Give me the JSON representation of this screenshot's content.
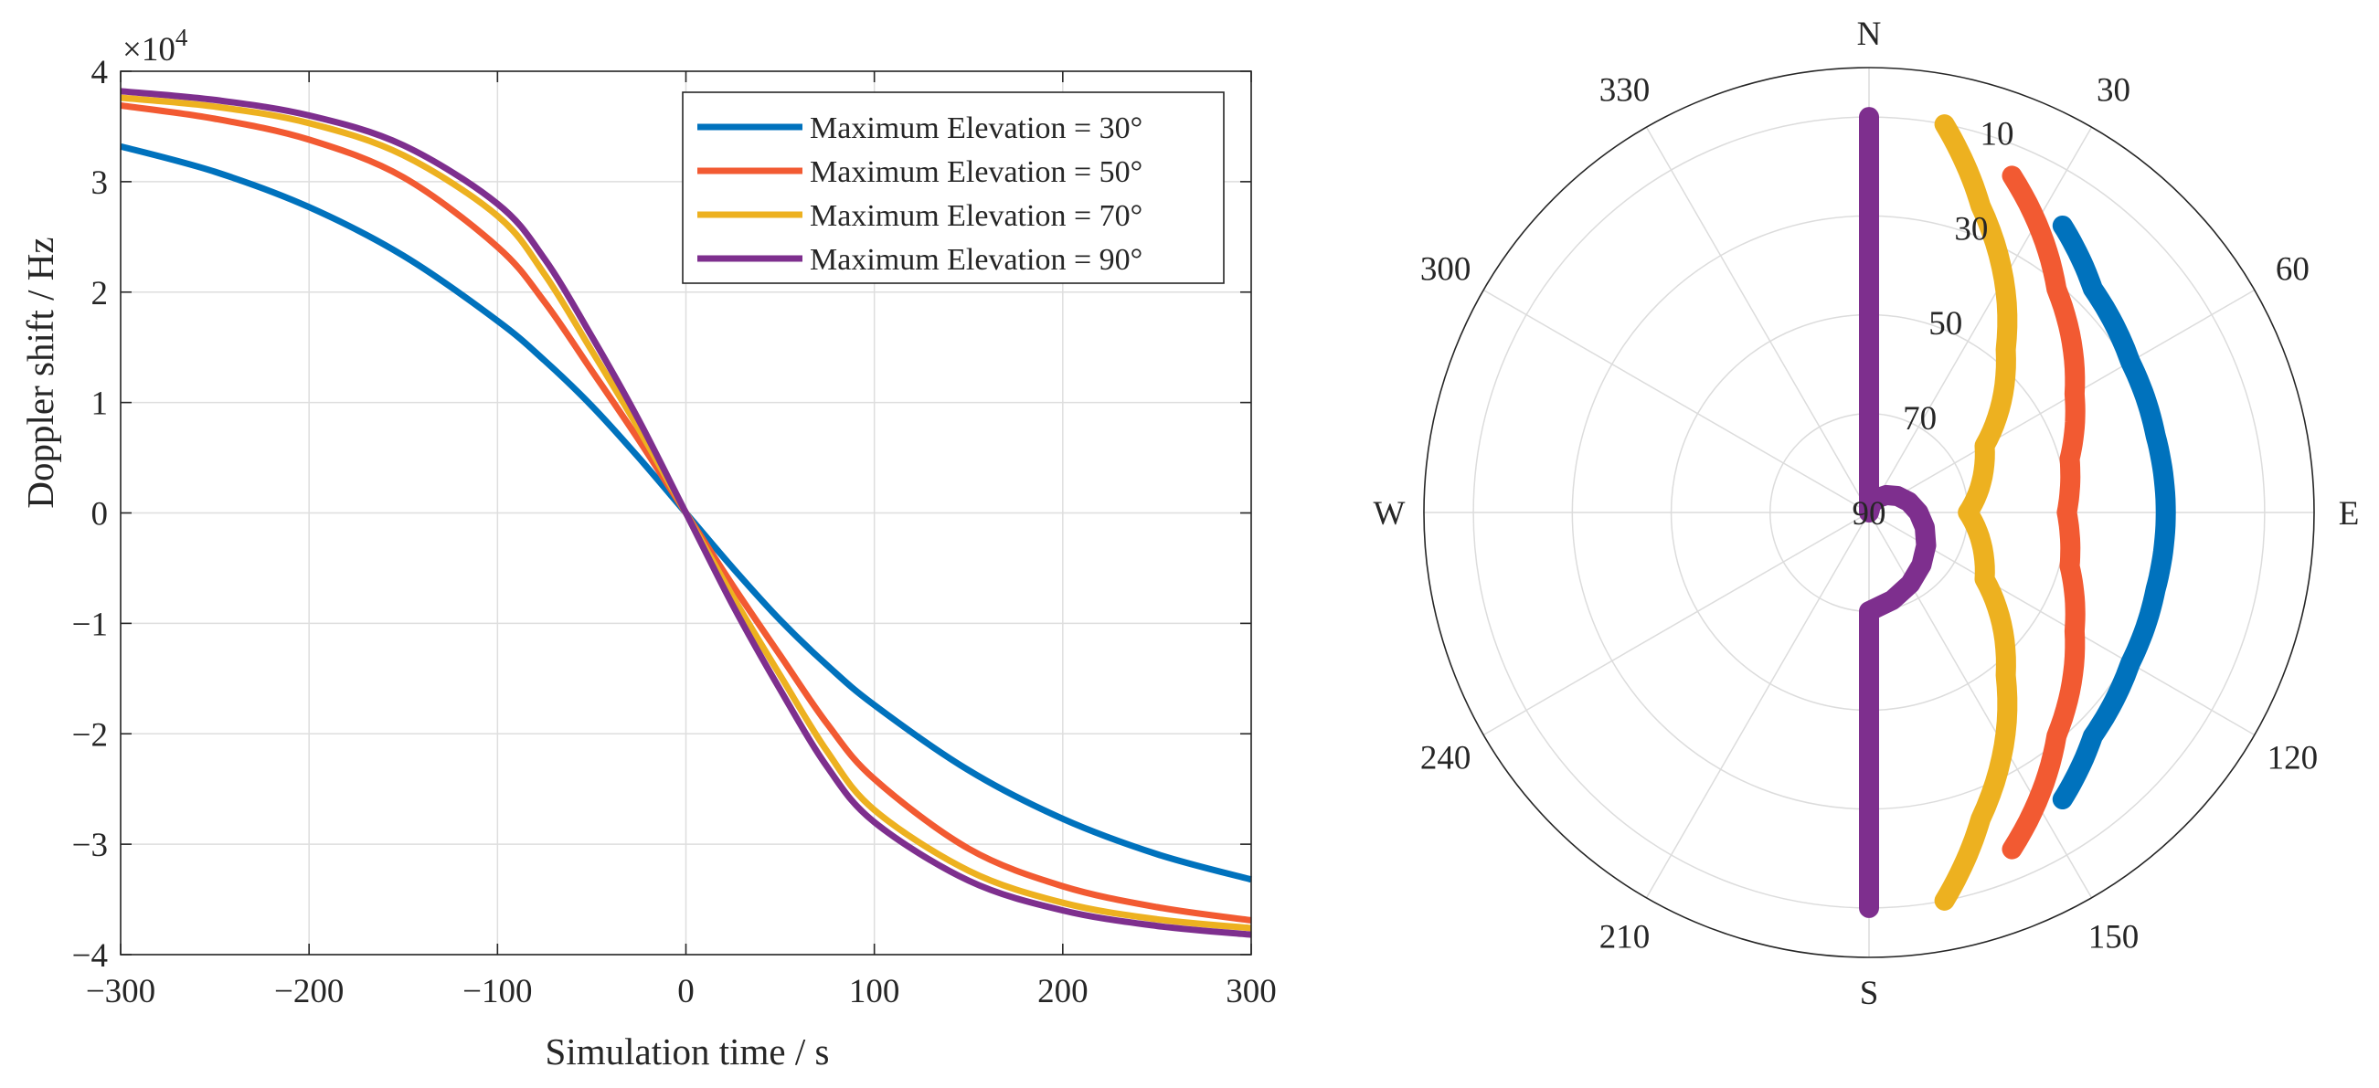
{
  "chart_data": [
    {
      "type": "line",
      "xlabel": "Simulation time / s",
      "ylabel": "Doppler shift / Hz",
      "exponent_label": "×10",
      "exponent_power": "4",
      "xlim": [
        -300,
        300
      ],
      "ylim": [
        -4,
        4
      ],
      "xticks": [
        -300,
        -200,
        -100,
        0,
        100,
        200,
        300
      ],
      "xtick_labels": [
        "−300",
        "−200",
        "−100",
        "0",
        "100",
        "200",
        "300"
      ],
      "yticks": [
        -4,
        -3,
        -2,
        -1,
        0,
        1,
        2,
        3,
        4
      ],
      "ytick_labels": [
        "−4",
        "−3",
        "−2",
        "−1",
        "0",
        "1",
        "2",
        "3",
        "4"
      ],
      "grid": true,
      "legend_position": "top-right",
      "x": [
        -300,
        -250,
        -200,
        -150,
        -100,
        -75,
        -50,
        -25,
        0,
        25,
        50,
        75,
        100,
        150,
        200,
        250,
        300
      ],
      "series": [
        {
          "name": "Maximum Elevation = 30°",
          "color": "#0072BD",
          "values": [
            3.32,
            3.09,
            2.77,
            2.33,
            1.74,
            1.38,
            0.97,
            0.5,
            0,
            -0.5,
            -0.97,
            -1.38,
            -1.74,
            -2.33,
            -2.77,
            -3.09,
            -3.32
          ]
        },
        {
          "name": "Maximum Elevation = 50°",
          "color": "#F25A32",
          "values": [
            3.69,
            3.57,
            3.38,
            3.04,
            2.41,
            1.91,
            1.29,
            0.66,
            0,
            -0.66,
            -1.29,
            -1.91,
            -2.41,
            -3.04,
            -3.38,
            -3.57,
            -3.69
          ]
        },
        {
          "name": "Maximum Elevation = 70°",
          "color": "#EDB120",
          "values": [
            3.76,
            3.68,
            3.53,
            3.24,
            2.69,
            2.16,
            1.47,
            0.76,
            0,
            -0.76,
            -1.47,
            -2.16,
            -2.69,
            -3.24,
            -3.53,
            -3.68,
            -3.76
          ]
        },
        {
          "name": "Maximum Elevation = 90°",
          "color": "#7E2F8E",
          "values": [
            3.82,
            3.74,
            3.6,
            3.33,
            2.8,
            2.3,
            1.6,
            0.84,
            0,
            -0.84,
            -1.6,
            -2.3,
            -2.8,
            -3.33,
            -3.6,
            -3.74,
            -3.82
          ]
        }
      ]
    },
    {
      "type": "polar",
      "compass_labels": {
        "north": "N",
        "east": "E",
        "south": "S",
        "west": "W"
      },
      "angle_ticks": [
        30,
        60,
        120,
        150,
        210,
        240,
        300,
        330
      ],
      "angle_labels": [
        "30",
        "60",
        "120",
        "150",
        "210",
        "240",
        "300",
        "330"
      ],
      "radial_ticks": [
        10,
        30,
        50,
        70,
        90
      ],
      "radial_labels": [
        "10",
        "30",
        "50",
        "70",
        "90"
      ],
      "radial_axis": "elevation (90 at center, 0 at rim)",
      "series": [
        {
          "name": "Maximum Elevation = 30°",
          "color": "#0072BD",
          "points": [
            [
              34,
              20
            ],
            [
              45,
              26
            ],
            [
              60,
              29
            ],
            [
              75,
              30
            ],
            [
              90,
              30
            ],
            [
              105,
              30
            ],
            [
              120,
              29
            ],
            [
              135,
              26
            ],
            [
              146,
              20
            ]
          ]
        },
        {
          "name": "Maximum Elevation = 50°",
          "color": "#F25A32",
          "points": [
            [
              23,
              16
            ],
            [
              40,
              31
            ],
            [
              60,
              42
            ],
            [
              75,
              48
            ],
            [
              90,
              50
            ],
            [
              105,
              48
            ],
            [
              120,
              42
            ],
            [
              140,
              31
            ],
            [
              157,
              16
            ]
          ]
        },
        {
          "name": "Maximum Elevation = 70°",
          "color": "#EDB120",
          "points": [
            [
              11,
              10
            ],
            [
              20,
              24
            ],
            [
              40,
              47
            ],
            [
              60,
              63
            ],
            [
              90,
              70
            ],
            [
              120,
              63
            ],
            [
              140,
              47
            ],
            [
              160,
              24
            ],
            [
              169,
              10
            ]
          ]
        },
        {
          "name": "Maximum Elevation = 90°",
          "color": "#7E2F8E",
          "points": [
            [
              0,
              10
            ],
            [
              0,
              40
            ],
            [
              0,
              70
            ],
            [
              0,
              90
            ],
            [
              180,
              70
            ],
            [
              180,
              40
            ],
            [
              180,
              10
            ]
          ]
        }
      ]
    }
  ]
}
